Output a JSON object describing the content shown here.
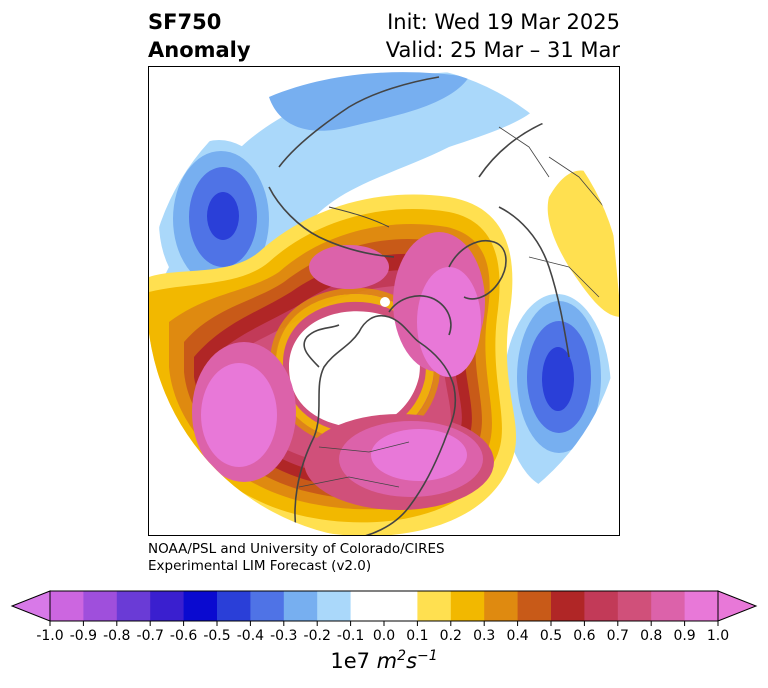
{
  "title": {
    "left_line1": "SF750",
    "left_line2": "Anomaly",
    "right_line1": "Init: Wed 19 Mar 2025",
    "right_line2": "Valid: 25 Mar – 31 Mar"
  },
  "credit": {
    "line1": "NOAA/PSL and University of Colorado/CIRES",
    "line2": "Experimental LIM Forecast (v2.0)"
  },
  "colorbar": {
    "ticks": [
      "-1.0",
      "-0.9",
      "-0.8",
      "-0.7",
      "-0.6",
      "-0.5",
      "-0.4",
      "-0.3",
      "-0.2",
      "-0.1",
      "0.0",
      "0.1",
      "0.2",
      "0.3",
      "0.4",
      "0.5",
      "0.6",
      "0.7",
      "0.8",
      "0.9",
      "1.0"
    ],
    "colors": [
      "#cc66e0",
      "#9f4fdc",
      "#6a3bd6",
      "#3a1fcf",
      "#0a0ad0",
      "#2a3fd8",
      "#4f73e6",
      "#77aff0",
      "#aad8fa",
      "#ffffff",
      "#ffffff",
      "#ffe050",
      "#f2b800",
      "#df8a10",
      "#c85a18",
      "#b02626",
      "#c23a58",
      "#d0507a",
      "#dc62aa",
      "#e878d8"
    ],
    "under_color": "#d879e8",
    "over_color": "#e878d8",
    "label_base": "1e7 ",
    "label_unit_m": "m",
    "label_exp_m": "2",
    "label_unit_s": "s",
    "label_exp_s": "−1"
  },
  "map": {
    "projection": "north-polar-stereographic",
    "coastline_color": "#444444",
    "features": [
      {
        "name": "negative-anomaly-north-pacific",
        "level": -0.6
      },
      {
        "name": "negative-anomaly-north-atlantic",
        "level": -0.6
      },
      {
        "name": "negative-anomaly-siberia",
        "level": -0.3
      },
      {
        "name": "positive-anomaly-western-pacific-arc",
        "level": 0.9
      },
      {
        "name": "positive-anomaly-eastern-north-america",
        "level": 1.0
      },
      {
        "name": "positive-anomaly-scandinavia",
        "level": 0.9
      },
      {
        "name": "positive-anomaly-north-africa",
        "level": 0.2
      }
    ]
  }
}
